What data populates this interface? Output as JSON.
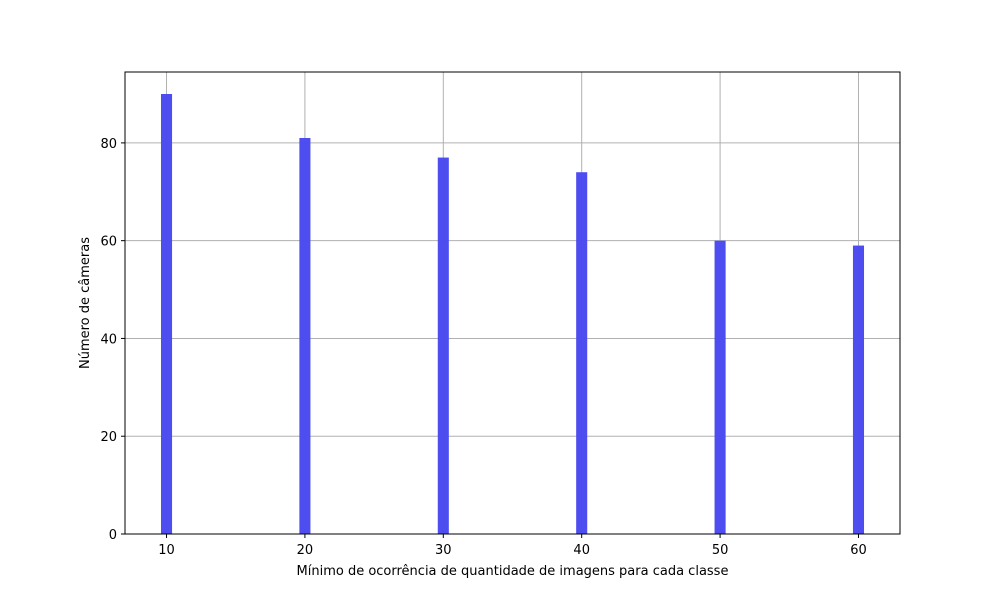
{
  "chart_data": {
    "type": "bar",
    "x": [
      10,
      20,
      30,
      40,
      50,
      60
    ],
    "values": [
      90,
      81,
      77,
      74,
      60,
      59
    ],
    "bar_color": "#4a4af0",
    "grid_color": "#b0b0b0",
    "title": "",
    "xlabel": "Mínimo de ocorrência de quantidade de imagens para cada classe",
    "ylabel": "Número de câmeras",
    "xlim": [
      7,
      63
    ],
    "ylim": [
      0,
      94.5
    ],
    "xticks": [
      "10",
      "20",
      "30",
      "40",
      "50",
      "60"
    ],
    "yticks": [
      "0",
      "20",
      "40",
      "60",
      "80"
    ],
    "grid": true
  }
}
